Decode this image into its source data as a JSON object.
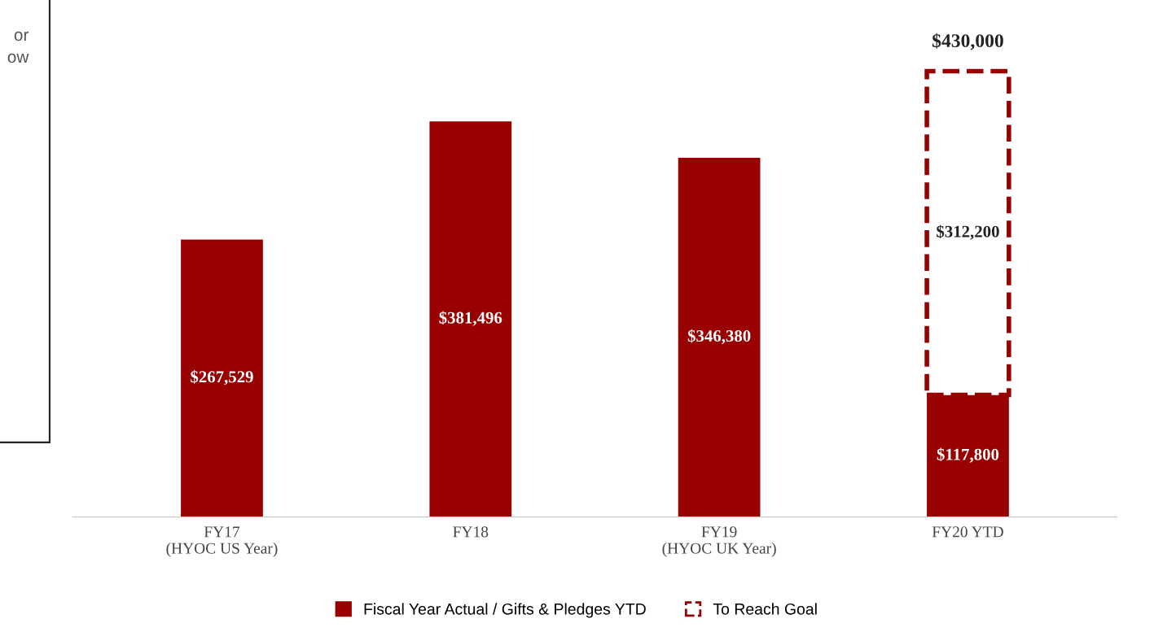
{
  "chart_data": {
    "type": "bar",
    "stacked": true,
    "categories": [
      "FY17\n(HYOC US Year)",
      "FY18",
      "FY19\n(HYOC UK Year)",
      "FY20 YTD"
    ],
    "series": [
      {
        "name": "Fiscal Year Actual / Gifts & Pledges YTD",
        "color": "#990000",
        "line_style": "solid",
        "values": [
          267529,
          381496,
          346380,
          117800
        ],
        "value_labels": [
          "$267,529",
          "$381,496",
          "$346,380",
          "$117,800"
        ]
      },
      {
        "name": "To Reach Goal",
        "color": "#990000",
        "line_style": "dashed",
        "values": [
          null,
          null,
          null,
          312200
        ],
        "value_labels": [
          null,
          null,
          null,
          "$312,200"
        ]
      }
    ],
    "totals": [
      null,
      null,
      null,
      "$430,000"
    ],
    "annotations": [
      "or\now"
    ],
    "legend": "bottom",
    "grid": false,
    "tick_labels": "x"
  }
}
